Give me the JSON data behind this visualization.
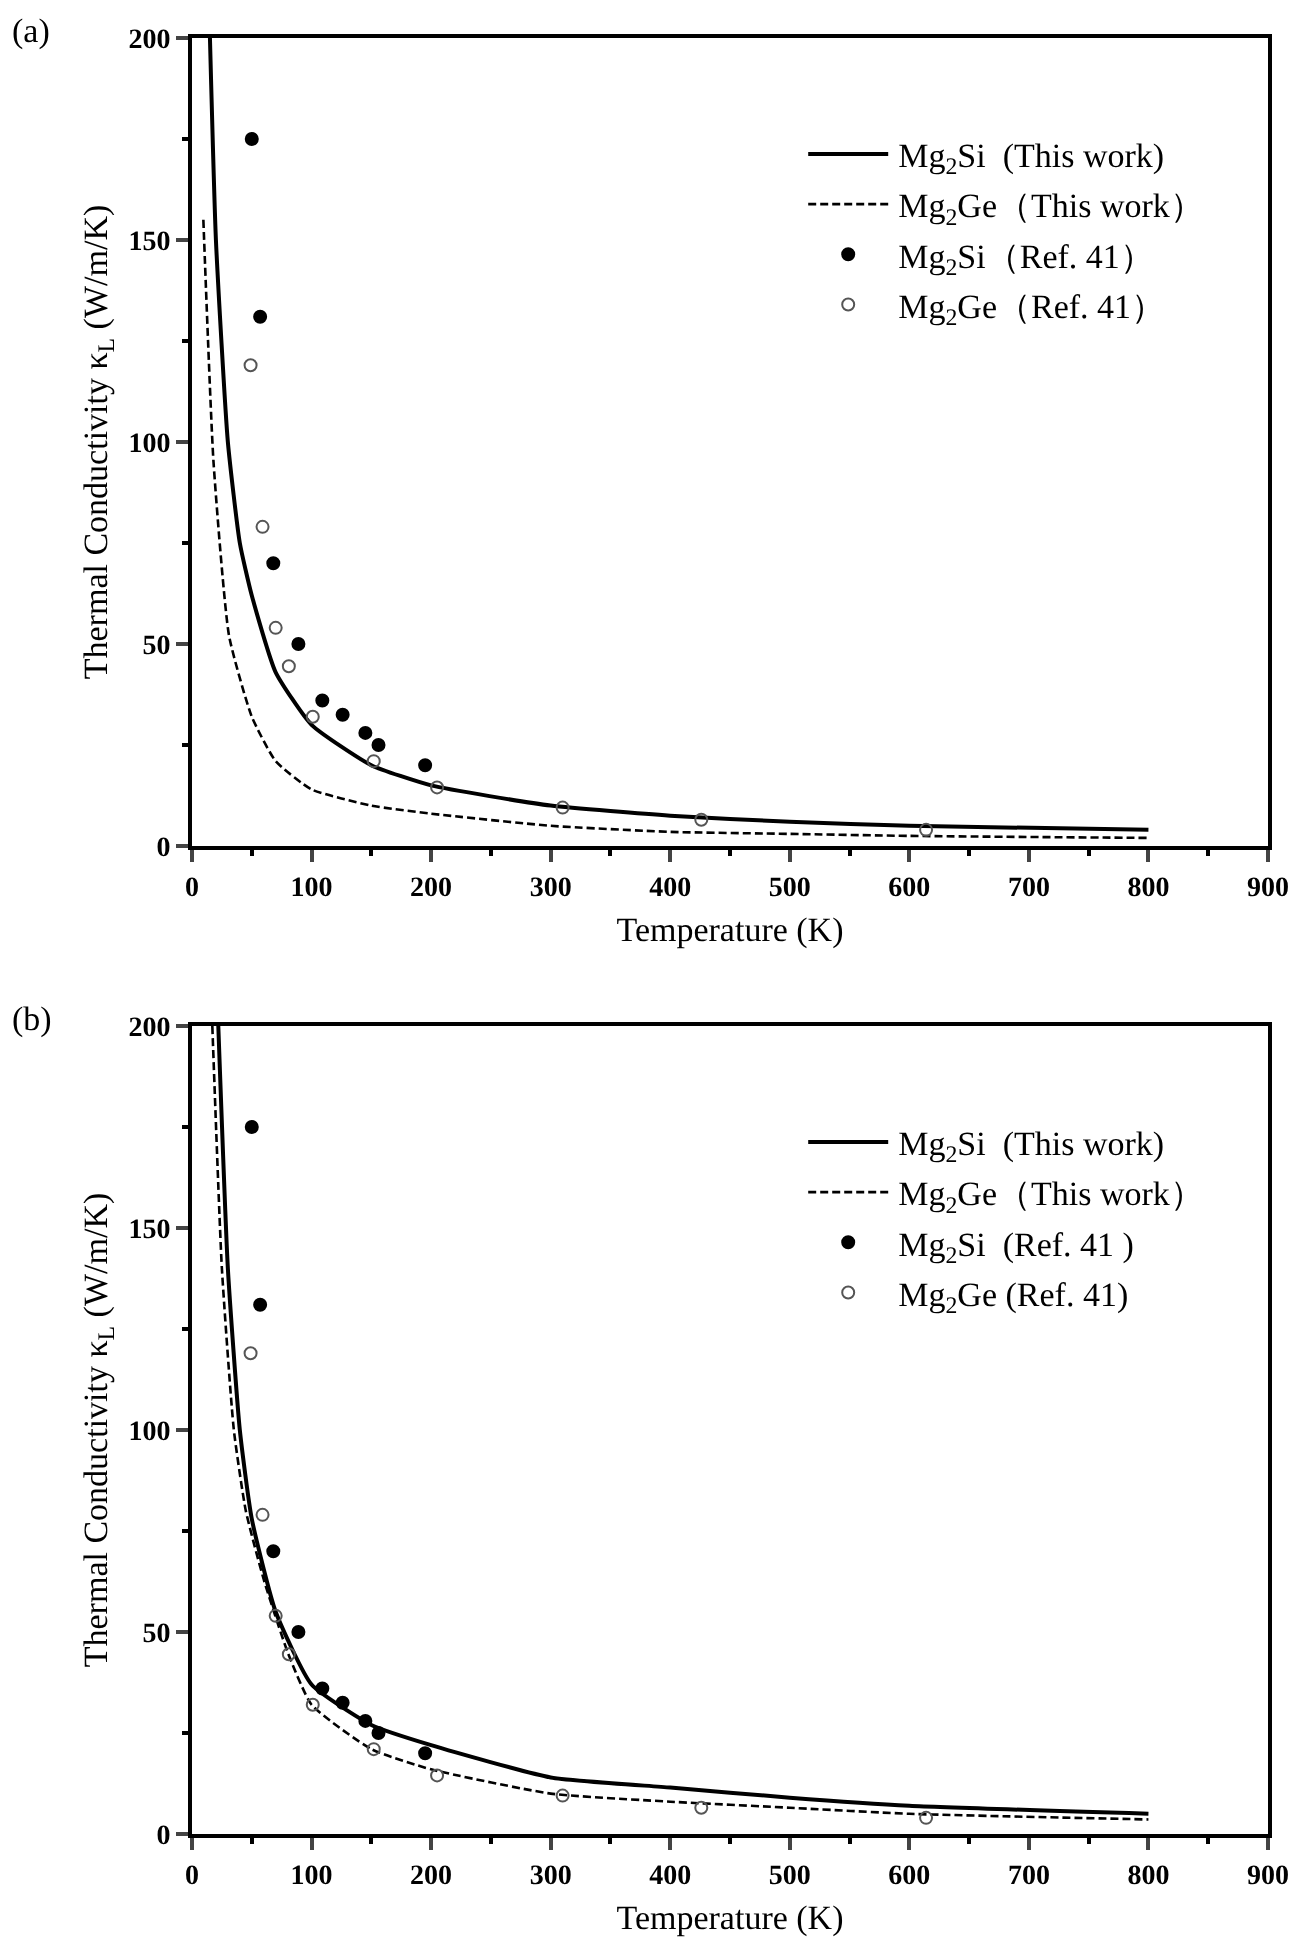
{
  "chart_data": [
    {
      "type": "line",
      "title": "(a)",
      "xlabel": "Temperature (K)",
      "ylabel": "Thermal Conductivity κ$_{L}$ (W/m/K)",
      "xlim": [
        0,
        900
      ],
      "ylim": [
        0,
        200
      ],
      "xticks": [
        0,
        100,
        200,
        300,
        400,
        500,
        600,
        700,
        800,
        900
      ],
      "yticks": [
        0,
        50,
        100,
        150,
        200
      ],
      "legend": "top right",
      "series": [
        {
          "name": "Mg$_{2}$Si  (This work)",
          "color": "#000000",
          "line_style": "solid",
          "x": [
            15,
            20,
            30,
            40,
            50,
            70,
            100,
            150,
            200,
            300,
            400,
            500,
            600,
            800
          ],
          "values": [
            200,
            150,
            100,
            75,
            62,
            43,
            30,
            20,
            15,
            10,
            7.5,
            6,
            5,
            4
          ]
        },
        {
          "name": "Mg$_{2}$Ge（This work）",
          "color": "#000000",
          "line_style": "dashed",
          "x": [
            9.5,
            18,
            31,
            50,
            70,
            100,
            150,
            200,
            300,
            400,
            500,
            600,
            800
          ],
          "values": [
            155,
            95,
            52,
            32,
            21,
            14,
            10,
            8,
            5,
            3.5,
            3,
            2.5,
            2
          ]
        },
        {
          "name": "Mg$_{2}$Si（Ref. 41）",
          "type": "scatter",
          "color": "#000000",
          "marker": "circle",
          "x": [
            50,
            57,
            68,
            89,
            109,
            126,
            145,
            156,
            195
          ],
          "values": [
            175,
            131,
            70,
            50,
            36,
            32.5,
            28,
            25,
            20
          ]
        },
        {
          "name": "Mg$_{2}$Ge（Ref. 41）",
          "type": "scatter",
          "color": "#555555",
          "marker": "circle-open",
          "x": [
            49,
            59,
            70,
            81,
            101,
            152,
            205,
            310,
            426,
            614
          ],
          "values": [
            119,
            79,
            54,
            44.5,
            32,
            21,
            14.5,
            9.5,
            6.5,
            4
          ]
        }
      ]
    },
    {
      "type": "line",
      "title": "(b)",
      "xlabel": "Temperature (K)",
      "ylabel": "Thermal Conductivity κ$_{L}$ (W/m/K)",
      "xlim": [
        0,
        900
      ],
      "ylim": [
        0,
        200
      ],
      "xticks": [
        0,
        100,
        200,
        300,
        400,
        500,
        600,
        700,
        800,
        900
      ],
      "yticks": [
        0,
        50,
        100,
        150,
        200
      ],
      "legend": "top right",
      "series": [
        {
          "name": "Mg$_{2}$Si  (This work)",
          "color": "#000000",
          "line_style": "solid",
          "x": [
            22,
            30,
            40,
            50,
            70,
            100,
            150,
            200,
            300,
            400,
            500,
            600,
            800
          ],
          "values": [
            200,
            140,
            100,
            78,
            55,
            37,
            27,
            22,
            14,
            11.5,
            9,
            7,
            5
          ]
        },
        {
          "name": "Mg$_{2}$Ge（This work）",
          "color": "#000000",
          "line_style": "dashed",
          "x": [
            17,
            25,
            35,
            45,
            60,
            80,
            100,
            150,
            200,
            300,
            400,
            500,
            600,
            800
          ],
          "values": [
            200,
            140,
            100,
            80,
            63,
            45,
            32,
            21,
            16,
            10,
            8,
            6.5,
            5,
            3.6
          ]
        },
        {
          "name": "Mg$_{2}$Si  (Ref. 41 )",
          "type": "scatter",
          "color": "#000000",
          "marker": "circle",
          "x": [
            50,
            57,
            68,
            89,
            109,
            126,
            145,
            156,
            195
          ],
          "values": [
            175,
            131,
            70,
            50,
            36,
            32.5,
            28,
            25,
            20
          ]
        },
        {
          "name": "Mg$_{2}$Ge (Ref. 41)",
          "type": "scatter",
          "color": "#555555",
          "marker": "circle-open",
          "x": [
            49,
            59,
            70,
            81,
            101,
            152,
            205,
            310,
            426,
            614
          ],
          "values": [
            119,
            79,
            54,
            44.5,
            32,
            21,
            14.5,
            9.5,
            6.5,
            4
          ]
        }
      ]
    }
  ]
}
